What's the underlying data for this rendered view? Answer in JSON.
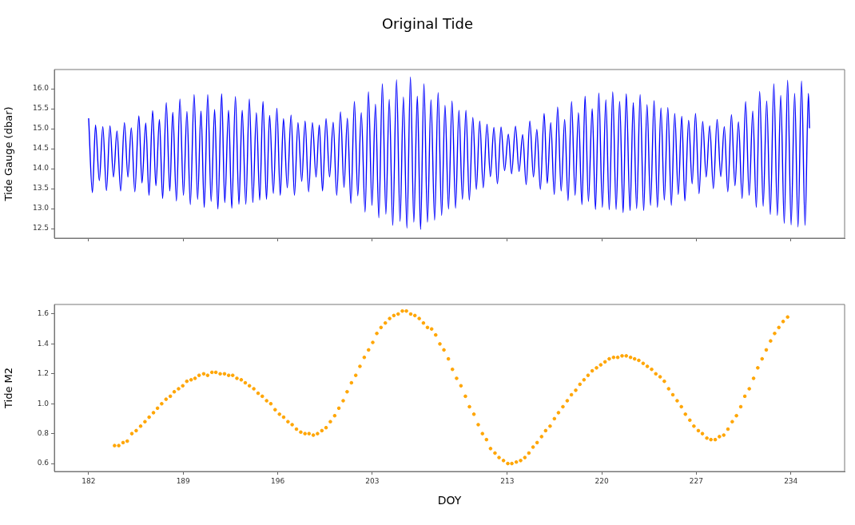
{
  "chart_data": [
    {
      "type": "line",
      "title": "Original Tide",
      "ylabel": "Tide Gauge (dbar)",
      "marker": "none",
      "tick_labels": "y",
      "xlim": [
        179.46,
        237.98
      ],
      "xticks": [
        182,
        189,
        196,
        203,
        213,
        220,
        227,
        234
      ],
      "ylim": [
        12.26,
        16.48
      ],
      "yticks": [
        {
          "value": 12.5,
          "label": "12.5"
        },
        {
          "value": 13,
          "label": "13.0"
        },
        {
          "value": 13.5,
          "label": "13.5"
        },
        {
          "value": 14,
          "label": "14.0"
        },
        {
          "value": 14.5,
          "label": "14.5"
        },
        {
          "value": 15,
          "label": "15.0"
        },
        {
          "value": 15.5,
          "label": "15.5"
        },
        {
          "value": 16,
          "label": "16.0"
        }
      ],
      "series": [
        {
          "color": "#0000ff",
          "x": [
            182.0,
            182.28,
            182.51,
            182.79,
            183.05,
            183.32,
            183.58,
            183.84,
            184.1,
            184.37,
            184.65,
            184.91,
            185.16,
            185.42,
            185.72,
            185.95,
            186.23,
            186.47,
            186.74,
            186.98,
            187.24,
            187.48,
            187.75,
            188.01,
            188.23,
            188.5,
            188.76,
            189.02,
            189.28,
            189.53,
            189.81,
            190.07,
            190.32,
            190.56,
            190.82,
            191.07,
            191.33,
            191.57,
            191.85,
            192.08,
            192.36,
            192.6,
            192.87,
            193.13,
            193.37,
            193.64,
            193.9,
            194.16,
            194.42,
            194.67,
            194.91,
            195.17,
            195.4,
            195.68,
            195.94,
            196.19,
            196.43,
            196.71,
            196.99,
            197.24,
            197.5,
            197.78,
            198.03,
            198.29,
            198.57,
            198.84,
            199.08,
            199.32,
            199.58,
            199.84,
            200.11,
            200.37,
            200.65,
            200.91,
            201.16,
            201.42,
            201.68,
            201.93,
            202.19,
            202.47,
            202.72,
            202.98,
            203.24,
            203.49,
            203.75,
            204.01,
            204.26,
            204.52,
            204.8,
            205.06,
            205.31,
            205.57,
            205.83,
            206.08,
            206.34,
            206.58,
            206.83,
            207.09,
            207.35,
            207.62,
            207.88,
            208.14,
            208.39,
            208.65,
            208.91,
            209.17,
            209.42,
            209.68,
            209.94,
            210.19,
            210.45,
            210.71,
            210.96,
            211.22,
            211.5,
            211.75,
            212.01,
            212.27,
            212.54,
            212.8,
            213.08,
            213.32,
            213.61,
            213.87,
            214.14,
            214.4,
            214.67,
            214.94,
            215.19,
            215.45,
            215.73,
            215.96,
            216.22,
            216.48,
            216.73,
            216.99,
            217.25,
            217.5,
            217.76,
            218.02,
            218.27,
            218.53,
            218.76,
            219.01,
            219.29,
            219.53,
            219.78,
            220.04,
            220.3,
            220.55,
            220.81,
            221.06,
            221.32,
            221.58,
            221.81,
            222.09,
            222.33,
            222.58,
            222.84,
            223.1,
            223.35,
            223.61,
            223.87,
            224.12,
            224.38,
            224.63,
            224.89,
            225.15,
            225.4,
            225.66,
            225.92,
            226.15,
            226.43,
            226.69,
            226.94,
            227.2,
            227.47,
            227.73,
            227.99,
            228.26,
            228.54,
            228.81,
            229.07,
            229.33,
            229.6,
            229.86,
            230.12,
            230.39,
            230.65,
            230.91,
            231.18,
            231.44,
            231.69,
            231.95,
            232.21,
            232.48,
            232.74,
            233.0,
            233.25,
            233.51,
            233.76,
            234.02,
            234.28,
            234.53,
            234.79,
            235.05,
            235.3,
            235.38
          ],
          "values": [
            15.26,
            13.4,
            15.09,
            13.7,
            15.05,
            13.45,
            15.07,
            13.79,
            14.94,
            13.44,
            15.15,
            13.79,
            15.02,
            13.42,
            15.32,
            13.64,
            15.14,
            13.33,
            15.45,
            13.57,
            15.23,
            13.25,
            15.65,
            13.44,
            15.41,
            13.19,
            15.74,
            13.33,
            15.43,
            13.1,
            15.85,
            13.23,
            15.44,
            13.03,
            15.85,
            13.18,
            15.48,
            12.99,
            15.87,
            13.15,
            15.46,
            13.01,
            15.8,
            13.11,
            15.46,
            13.11,
            15.74,
            13.15,
            15.4,
            13.21,
            15.68,
            13.23,
            15.33,
            13.38,
            15.51,
            13.33,
            15.25,
            13.52,
            15.34,
            13.33,
            15.15,
            13.68,
            15.19,
            13.42,
            15.15,
            13.79,
            15.09,
            13.44,
            15.25,
            13.79,
            15.16,
            13.33,
            15.42,
            13.53,
            15.26,
            13.13,
            15.68,
            13.32,
            15.4,
            12.91,
            15.92,
            13.08,
            15.61,
            12.77,
            16.12,
            12.86,
            15.73,
            12.58,
            16.22,
            12.68,
            15.79,
            12.51,
            16.29,
            12.66,
            15.81,
            12.48,
            16.12,
            12.66,
            15.72,
            12.71,
            15.9,
            12.83,
            15.58,
            12.99,
            15.69,
            13.01,
            15.46,
            13.23,
            15.46,
            13.21,
            15.28,
            13.48,
            15.19,
            13.52,
            15.11,
            13.8,
            15.03,
            13.62,
            15.04,
            13.95,
            14.86,
            13.87,
            15.06,
            13.93,
            14.85,
            13.6,
            15.19,
            13.79,
            14.98,
            13.48,
            15.38,
            13.63,
            15.15,
            13.35,
            15.54,
            13.44,
            15.23,
            13.2,
            15.68,
            13.33,
            15.4,
            13.1,
            15.81,
            13.18,
            15.5,
            12.98,
            15.89,
            13.03,
            15.72,
            12.97,
            15.92,
            12.98,
            15.68,
            12.9,
            15.87,
            12.95,
            15.65,
            13.0,
            15.85,
            12.95,
            15.6,
            13.08,
            15.7,
            13.03,
            15.52,
            13.21,
            15.53,
            13.08,
            15.38,
            13.35,
            15.31,
            13.19,
            15.21,
            13.62,
            15.38,
            13.37,
            15.18,
            13.79,
            15.07,
            13.5,
            15.23,
            13.8,
            15.05,
            13.42,
            15.35,
            13.57,
            15.17,
            13.25,
            15.68,
            13.33,
            15.44,
            13.03,
            15.93,
            13.06,
            15.69,
            12.85,
            16.12,
            12.83,
            15.83,
            12.63,
            16.21,
            12.59,
            15.88,
            12.54,
            16.19,
            12.58,
            15.88,
            15.01
          ]
        }
      ]
    },
    {
      "type": "scatter",
      "xlabel": "DOY",
      "ylabel": "Tide M2",
      "marker": "circle",
      "xlim": [
        179.46,
        237.98
      ],
      "xticks": [
        182,
        189,
        196,
        203,
        213,
        220,
        227,
        234
      ],
      "ylim": [
        0.547,
        1.664
      ],
      "yticks": [
        {
          "value": 0.6,
          "label": "0.6"
        },
        {
          "value": 0.8,
          "label": "0.8"
        },
        {
          "value": 1,
          "label": "1.0"
        },
        {
          "value": 1.2,
          "label": "1.2"
        },
        {
          "value": 1.4,
          "label": "1.4"
        },
        {
          "value": 1.6,
          "label": "1.6"
        }
      ],
      "series": [
        {
          "color": "#ffa500",
          "x": [
            183.92,
            184.23,
            184.55,
            184.86,
            185.2,
            185.52,
            185.85,
            186.17,
            186.48,
            186.8,
            187.1,
            187.41,
            187.73,
            188.05,
            188.34,
            188.66,
            188.97,
            189.27,
            189.59,
            189.88,
            190.18,
            190.52,
            190.81,
            191.13,
            191.42,
            191.74,
            192.06,
            192.37,
            192.67,
            192.98,
            193.3,
            193.6,
            193.91,
            194.23,
            194.55,
            194.86,
            195.18,
            195.49,
            195.81,
            196.13,
            196.44,
            196.76,
            197.07,
            197.39,
            197.71,
            198.02,
            198.32,
            198.64,
            198.95,
            199.27,
            199.58,
            199.9,
            200.22,
            200.53,
            200.85,
            201.14,
            201.46,
            201.78,
            202.09,
            202.41,
            202.73,
            203.04,
            203.34,
            203.65,
            203.97,
            204.29,
            204.6,
            204.92,
            205.23,
            205.53,
            205.85,
            206.16,
            206.48,
            206.79,
            207.09,
            207.4,
            207.7,
            208.01,
            208.31,
            208.64,
            208.94,
            209.25,
            209.57,
            209.9,
            210.2,
            210.53,
            210.85,
            211.16,
            211.46,
            211.76,
            212.09,
            212.39,
            212.72,
            213.04,
            213.34,
            213.67,
            213.99,
            214.3,
            214.6,
            214.91,
            215.21,
            215.54,
            215.84,
            216.17,
            216.49,
            216.79,
            217.12,
            217.44,
            217.75,
            218.07,
            218.38,
            218.68,
            218.98,
            219.29,
            219.61,
            219.92,
            220.24,
            220.55,
            220.87,
            221.18,
            221.5,
            221.81,
            222.13,
            222.43,
            222.74,
            223.06,
            223.37,
            223.69,
            224.0,
            224.32,
            224.63,
            224.95,
            225.26,
            225.58,
            225.89,
            226.19,
            226.52,
            226.82,
            227.15,
            227.45,
            227.78,
            228.08,
            228.4,
            228.71,
            229.03,
            229.34,
            229.66,
            229.97,
            230.29,
            230.59,
            230.92,
            231.24,
            231.55,
            231.87,
            232.18,
            232.5,
            232.8,
            233.11,
            233.43,
            233.76
          ],
          "values": [
            0.72,
            0.72,
            0.74,
            0.75,
            0.8,
            0.82,
            0.85,
            0.88,
            0.91,
            0.94,
            0.97,
            1.0,
            1.03,
            1.05,
            1.08,
            1.1,
            1.12,
            1.15,
            1.16,
            1.17,
            1.19,
            1.2,
            1.19,
            1.21,
            1.21,
            1.2,
            1.2,
            1.19,
            1.19,
            1.17,
            1.16,
            1.14,
            1.12,
            1.1,
            1.07,
            1.05,
            1.02,
            1.0,
            0.96,
            0.93,
            0.91,
            0.88,
            0.86,
            0.83,
            0.81,
            0.8,
            0.8,
            0.79,
            0.8,
            0.82,
            0.84,
            0.88,
            0.92,
            0.97,
            1.02,
            1.08,
            1.14,
            1.19,
            1.25,
            1.31,
            1.36,
            1.41,
            1.47,
            1.51,
            1.54,
            1.57,
            1.59,
            1.6,
            1.62,
            1.62,
            1.6,
            1.59,
            1.57,
            1.54,
            1.51,
            1.5,
            1.46,
            1.4,
            1.36,
            1.3,
            1.23,
            1.17,
            1.12,
            1.05,
            0.98,
            0.93,
            0.86,
            0.8,
            0.76,
            0.7,
            0.67,
            0.64,
            0.62,
            0.6,
            0.6,
            0.61,
            0.62,
            0.64,
            0.67,
            0.71,
            0.74,
            0.78,
            0.82,
            0.85,
            0.9,
            0.94,
            0.98,
            1.02,
            1.06,
            1.09,
            1.13,
            1.16,
            1.19,
            1.22,
            1.24,
            1.26,
            1.28,
            1.3,
            1.31,
            1.31,
            1.32,
            1.32,
            1.31,
            1.3,
            1.29,
            1.27,
            1.25,
            1.23,
            1.2,
            1.18,
            1.15,
            1.1,
            1.06,
            1.02,
            0.98,
            0.93,
            0.89,
            0.85,
            0.82,
            0.8,
            0.77,
            0.76,
            0.76,
            0.78,
            0.79,
            0.83,
            0.88,
            0.92,
            0.98,
            1.05,
            1.1,
            1.17,
            1.24,
            1.3,
            1.36,
            1.42,
            1.47,
            1.51,
            1.55,
            1.58
          ]
        }
      ]
    }
  ]
}
